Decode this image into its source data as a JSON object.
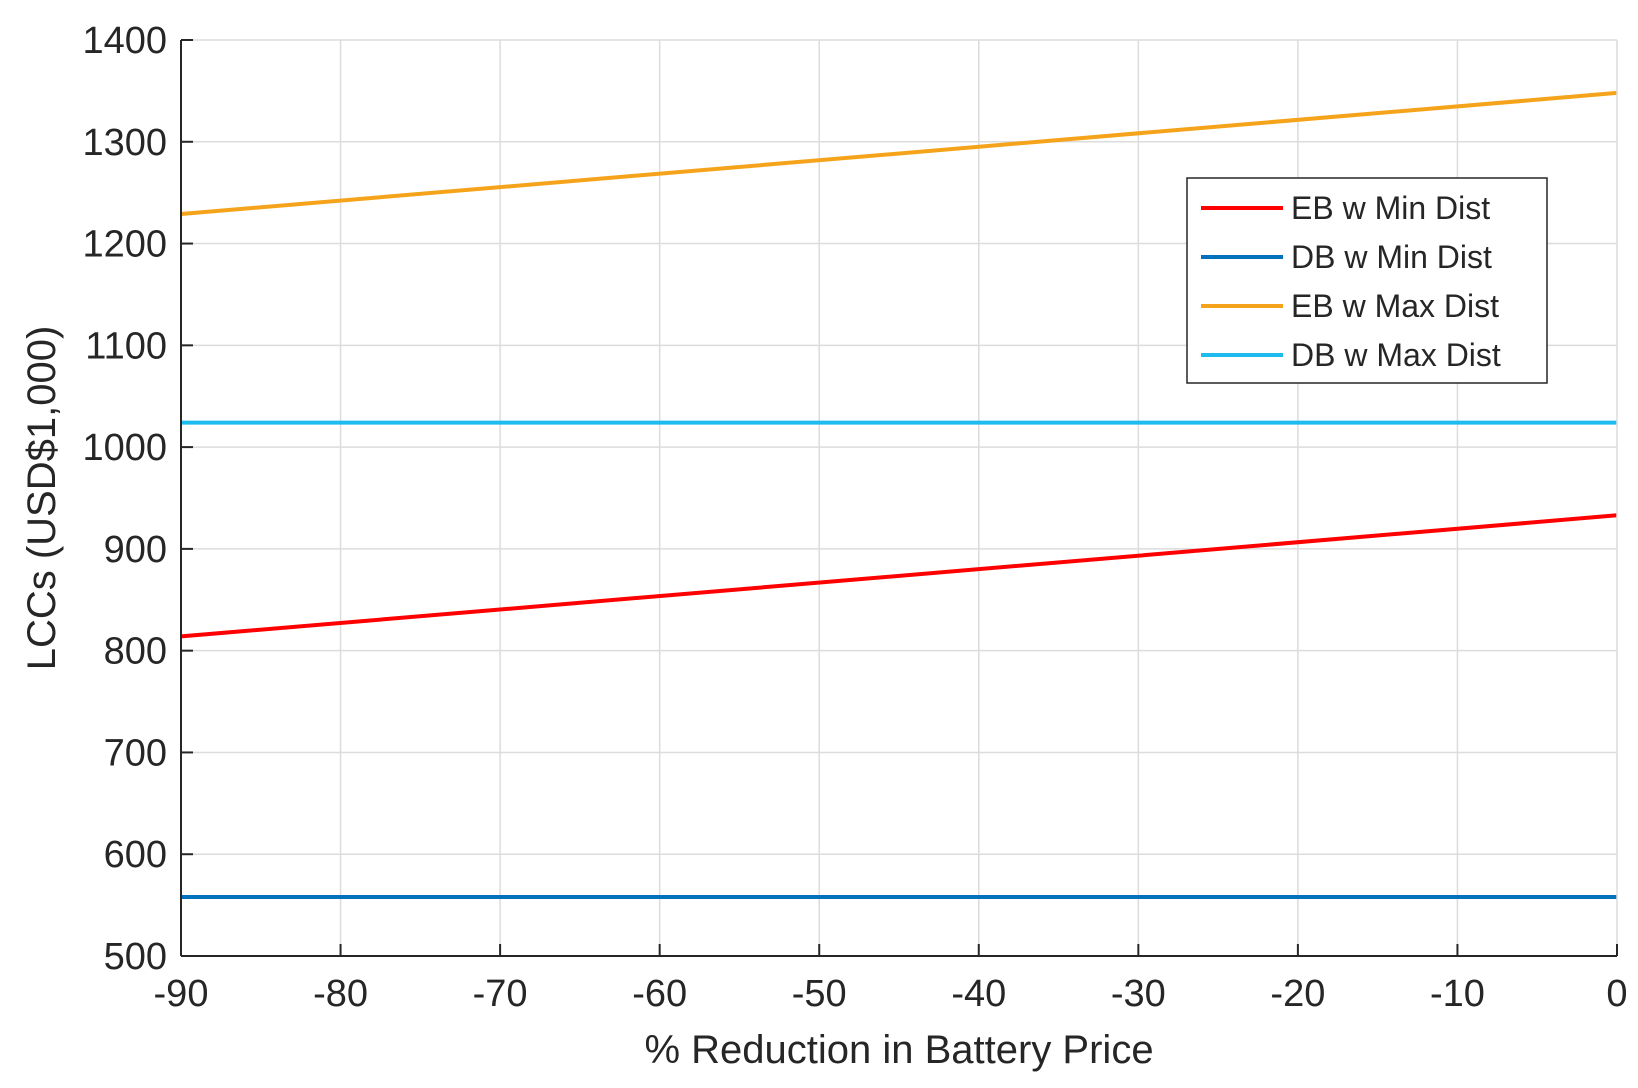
{
  "chart_data": {
    "type": "line",
    "title": "",
    "xlabel": "% Reduction in Battery Price",
    "ylabel": "LCCs (USD$1,000)",
    "xlim": [
      -90,
      0
    ],
    "ylim": [
      500,
      1400
    ],
    "xticks": [
      -90,
      -80,
      -70,
      -60,
      -50,
      -40,
      -30,
      -20,
      -10,
      0
    ],
    "yticks": [
      500,
      600,
      700,
      800,
      900,
      1000,
      1100,
      1200,
      1300,
      1400
    ],
    "grid": true,
    "legend_position": "top-right",
    "series": [
      {
        "name": "EB w Min Dist",
        "color": "#ff0000",
        "x": [
          -90,
          0
        ],
        "y": [
          814,
          933
        ]
      },
      {
        "name": "DB w Min Dist",
        "color": "#0072bd",
        "x": [
          -90,
          0
        ],
        "y": [
          558,
          558
        ]
      },
      {
        "name": "EB w Max Dist",
        "color": "#f5a31a",
        "x": [
          -90,
          0
        ],
        "y": [
          1229,
          1348
        ]
      },
      {
        "name": "DB w Max Dist",
        "color": "#1ebbee",
        "x": [
          -90,
          0
        ],
        "y": [
          1024,
          1024
        ]
      }
    ]
  }
}
